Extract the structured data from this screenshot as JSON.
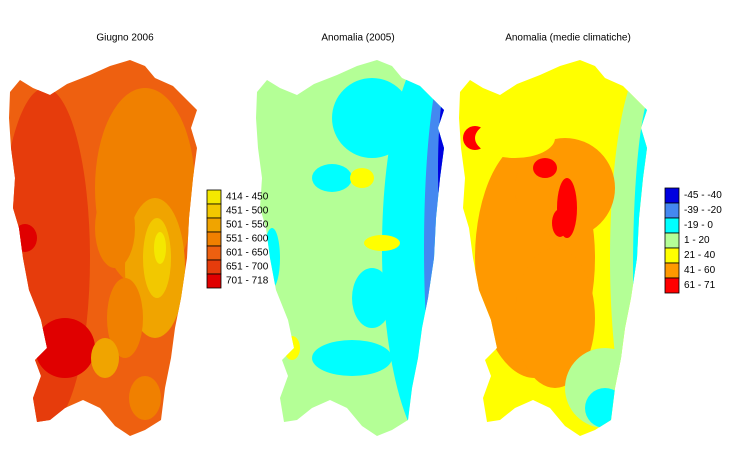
{
  "maps": [
    {
      "title": "Giugno 2006"
    },
    {
      "title": "Anomalia (2005)"
    },
    {
      "title": "Anomalia (medie climatiche)"
    }
  ],
  "legends": [
    {
      "entries": [
        {
          "label": "414 - 450",
          "color": "#f4e800"
        },
        {
          "label": "451 - 500",
          "color": "#f2c800"
        },
        {
          "label": "501 - 550",
          "color": "#f0a400"
        },
        {
          "label": "551 - 600",
          "color": "#f08000"
        },
        {
          "label": "601 - 650",
          "color": "#ee6010"
        },
        {
          "label": "651 - 700",
          "color": "#e63c0c"
        },
        {
          "label": "701 - 718",
          "color": "#e00000"
        }
      ]
    },
    {
      "entries": [
        {
          "label": "-45 - -40",
          "color": "#0000e0"
        },
        {
          "label": "-39 - -20",
          "color": "#4488f0"
        },
        {
          "label": "-19 - 0",
          "color": "#00ffff"
        },
        {
          "label": "1 - 20",
          "color": "#b4ff96"
        },
        {
          "label": "21 - 40",
          "color": "#ffff00"
        },
        {
          "label": "41 - 60",
          "color": "#ff9900"
        },
        {
          "label": "61 - 71",
          "color": "#ff0000"
        }
      ]
    }
  ]
}
